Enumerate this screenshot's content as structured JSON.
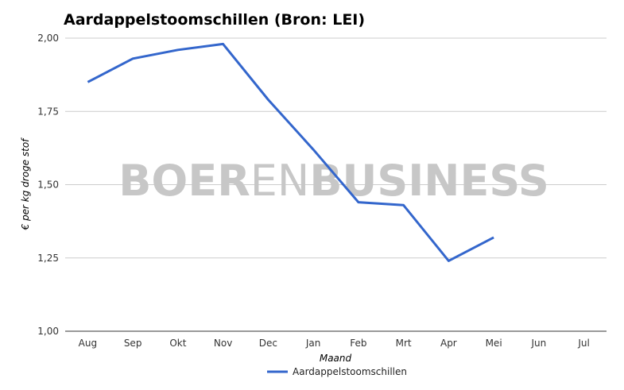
{
  "chart_data": {
    "type": "line",
    "title": "Aardappelstoomschillen (Bron: LEI)",
    "xlabel": "Maand",
    "ylabel": "€ per kg droge stof",
    "categories": [
      "Aug",
      "Sep",
      "Okt",
      "Nov",
      "Dec",
      "Jan",
      "Feb",
      "Mrt",
      "Apr",
      "Mei",
      "Jun",
      "Jul"
    ],
    "y_ticks": [
      "1,00",
      "1,25",
      "1,50",
      "1,75",
      "2,00"
    ],
    "ylim": [
      1.0,
      2.0
    ],
    "grid": true,
    "legend_position": "bottom",
    "series": [
      {
        "name": "Aardappelstoomschillen",
        "color": "#3366cc",
        "values": [
          1.85,
          1.93,
          1.96,
          1.98,
          1.79,
          1.62,
          1.44,
          1.43,
          1.24,
          1.32,
          null,
          null
        ]
      }
    ]
  },
  "watermark": {
    "part1": "BOER",
    "part2": "EN",
    "part3": "BUSINESS"
  }
}
